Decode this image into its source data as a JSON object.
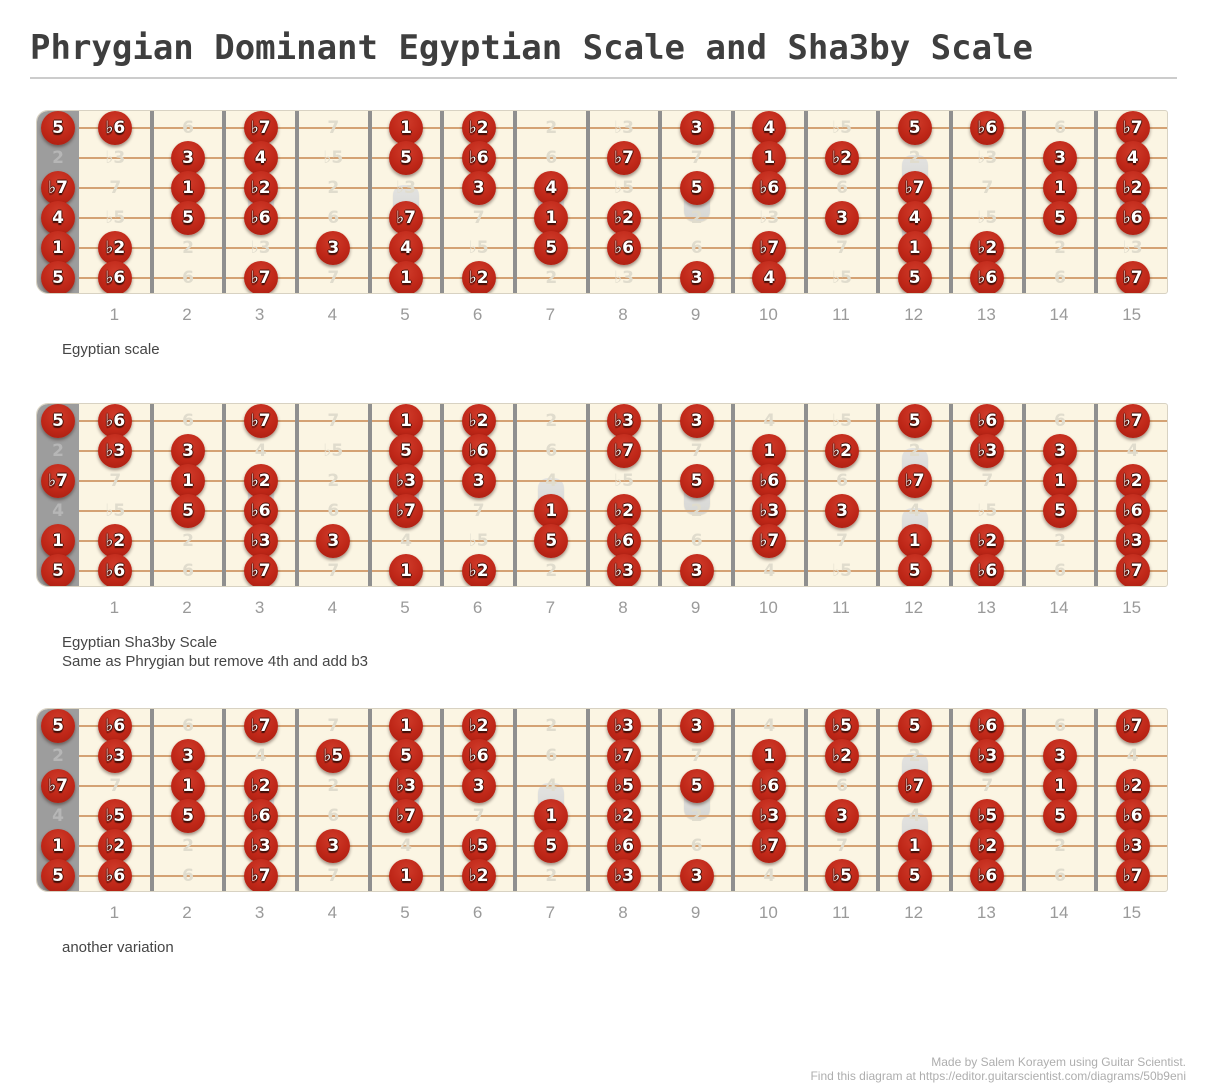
{
  "title": "Phrygian Dominant Egyptian Scale and Sha3by Scale",
  "colors": {
    "dot_red": "#bf2718",
    "board_cream": "#fbf5e3",
    "nut_gray": "#9d9d9d",
    "string_tan": "#d4a274",
    "fret_wire_gray": "#8f8f8f",
    "ghost_label_on_board": "#e0dccd",
    "ghost_label_on_nut": "#b6b6b6"
  },
  "fretboard": {
    "fret_numbers": [
      "1",
      "2",
      "3",
      "4",
      "5",
      "6",
      "7",
      "8",
      "9",
      "10",
      "11",
      "12",
      "13",
      "14",
      "15"
    ],
    "inlay_frets_single": [
      3,
      5,
      7,
      9,
      15
    ],
    "inlay_frets_double": [
      12
    ],
    "strings": [
      {
        "name": "string-1-high-e",
        "cells": [
          "5",
          "♭6",
          "6",
          "♭7",
          "7",
          "1",
          "♭2",
          "2",
          "♭3",
          "3",
          "4",
          "♭5",
          "5",
          "♭6",
          "6",
          "♭7"
        ]
      },
      {
        "name": "string-2-b",
        "cells": [
          "2",
          "♭3",
          "3",
          "4",
          "♭5",
          "5",
          "♭6",
          "6",
          "♭7",
          "7",
          "1",
          "♭2",
          "2",
          "♭3",
          "3",
          "4"
        ]
      },
      {
        "name": "string-3-g",
        "cells": [
          "♭7",
          "7",
          "1",
          "♭2",
          "2",
          "♭3",
          "3",
          "4",
          "♭5",
          "5",
          "♭6",
          "6",
          "♭7",
          "7",
          "1",
          "♭2"
        ]
      },
      {
        "name": "string-4-d",
        "cells": [
          "4",
          "♭5",
          "5",
          "♭6",
          "6",
          "♭7",
          "7",
          "1",
          "♭2",
          "2",
          "♭3",
          "3",
          "4",
          "♭5",
          "5",
          "♭6"
        ]
      },
      {
        "name": "string-5-a",
        "cells": [
          "1",
          "♭2",
          "2",
          "♭3",
          "3",
          "4",
          "♭5",
          "5",
          "♭6",
          "6",
          "♭7",
          "7",
          "1",
          "♭2",
          "2",
          "♭3"
        ]
      },
      {
        "name": "string-6-low-e",
        "cells": [
          "5",
          "♭6",
          "6",
          "♭7",
          "7",
          "1",
          "♭2",
          "2",
          "♭3",
          "3",
          "4",
          "♭5",
          "5",
          "♭6",
          "6",
          "♭7"
        ]
      }
    ]
  },
  "diagrams": [
    {
      "caption_lines": [
        "Egyptian scale"
      ],
      "active_intervals": [
        "1",
        "♭2",
        "3",
        "4",
        "5",
        "♭6",
        "♭7"
      ]
    },
    {
      "caption_lines": [
        "Egyptian Sha3by Scale",
        "Same as Phrygian but remove 4th and add b3"
      ],
      "active_intervals": [
        "1",
        "♭2",
        "♭3",
        "3",
        "5",
        "♭6",
        "♭7"
      ]
    },
    {
      "caption_lines": [
        "another variation"
      ],
      "active_intervals": [
        "1",
        "♭2",
        "♭3",
        "3",
        "♭5",
        "5",
        "♭6",
        "♭7"
      ]
    }
  ],
  "footer": {
    "line1": "Made by Salem Korayem using Guitar Scientist.",
    "line2": "Find this diagram at https://editor.guitarscientist.com/diagrams/50b9eni"
  }
}
